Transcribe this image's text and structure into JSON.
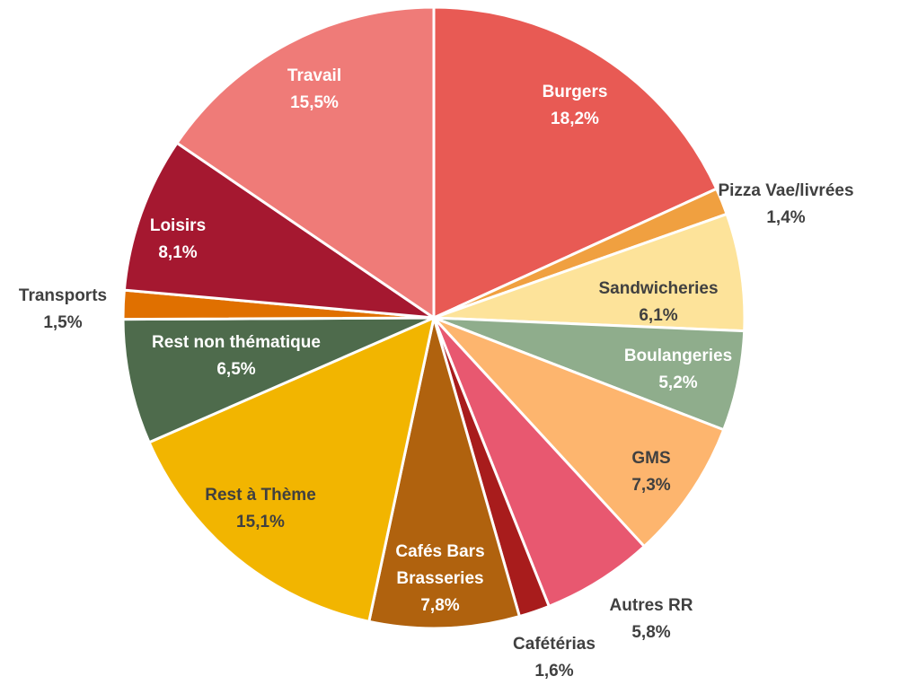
{
  "chart_data": {
    "type": "pie",
    "categories": [
      "Burgers",
      "Pizza Vae/livrées",
      "Sandwicheries",
      "Boulangeries",
      "GMS",
      "Autres RR",
      "Cafétérias",
      "Cafés Bars Brasseries",
      "Rest à Thème",
      "Rest non thématique",
      "Transports",
      "Loisirs",
      "Travail"
    ],
    "values": [
      18.2,
      1.4,
      6.1,
      5.2,
      7.3,
      5.8,
      1.6,
      7.8,
      15.1,
      6.5,
      1.5,
      8.1,
      15.5
    ],
    "value_labels": [
      "18,2%",
      "1,4%",
      "6,1%",
      "5,2%",
      "7,3%",
      "5,8%",
      "1,6%",
      "7,8%",
      "15,1%",
      "6,5%",
      "1,5%",
      "8,1%",
      "15,5%"
    ],
    "colors": [
      "#e85a54",
      "#f0a040",
      "#fde39a",
      "#8fad8c",
      "#fdb56e",
      "#e85870",
      "#a81c1c",
      "#b0620e",
      "#f2b500",
      "#4e6b4c",
      "#e07000",
      "#a51830",
      "#ef7b78"
    ]
  }
}
